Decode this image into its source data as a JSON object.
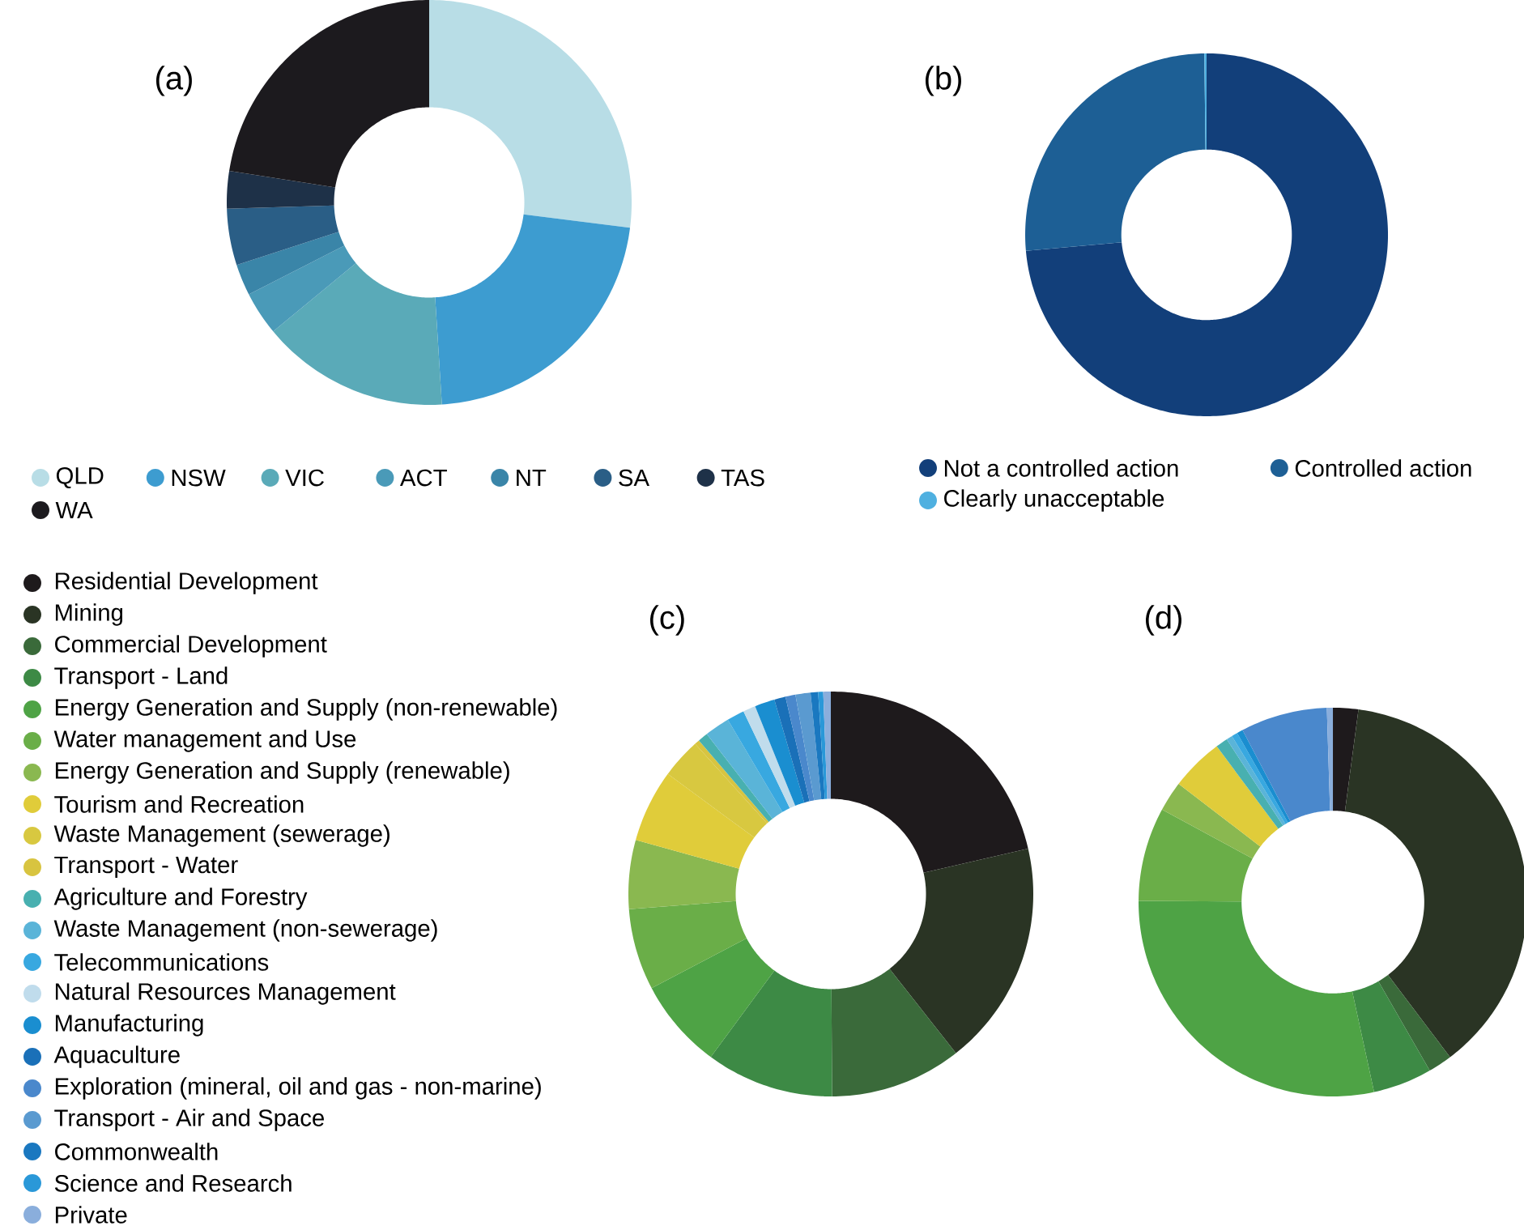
{
  "chart_data": [
    {
      "type": "donut",
      "title": "(a)",
      "categories": [
        "QLD",
        "NSW",
        "VIC",
        "ACT",
        "NT",
        "SA",
        "TAS",
        "WA"
      ],
      "values": [
        27,
        22,
        15,
        3.5,
        2.5,
        4.5,
        3,
        22.5
      ],
      "colors": [
        "#b8dde6",
        "#3d9cd0",
        "#5aaab8",
        "#4a9ab8",
        "#3a85a8",
        "#2a5e86",
        "#1e3148",
        "#1c1a1e"
      ],
      "legend": "bottom"
    },
    {
      "type": "donut",
      "title": "(b)",
      "categories": [
        "Not a controlled action",
        "Controlled action",
        "Clearly unacceptable"
      ],
      "values": [
        73.6,
        26.2,
        0.2
      ],
      "colors": [
        "#123f7a",
        "#1d5f95",
        "#4fb0e0"
      ],
      "legend": "bottom"
    },
    {
      "type": "donut",
      "title": "(c)",
      "categories": [
        "Residential Development",
        "Mining",
        "Commercial Development",
        "Transport - Land",
        "Energy Generation and Supply (non-renewable)",
        "Water management and Use",
        "Energy Generation and Supply (renewable)",
        "Tourism and Recreation",
        "Waste Management (sewerage)",
        "Transport - Water",
        "Agriculture and Forestry",
        "Waste Management (non-sewerage)",
        "Telecommunications",
        "Natural Resources Management",
        "Manufacturing",
        "Aquaculture",
        "Exploration (mineral, oil and gas - non-marine)",
        "Transport - Air and Space",
        "Commonwealth",
        "Science and Research",
        "Private"
      ],
      "values": [
        21.4,
        18,
        10.5,
        10.2,
        7.2,
        6.5,
        5.5,
        5.8,
        3.2,
        0.4,
        0.8,
        2.0,
        1.4,
        1.0,
        1.6,
        0.9,
        0.8,
        1.2,
        0.6,
        0.4,
        0.6
      ],
      "colors": [
        "#1e1a1c",
        "#2a3424",
        "#3a6a3a",
        "#3d8a45",
        "#4ea345",
        "#6aae48",
        "#8ab850",
        "#e0cc3a",
        "#d8c840",
        "#d8c440",
        "#48b0b0",
        "#5ab4d8",
        "#38a8e0",
        "#c0dcec",
        "#1a8ed0",
        "#1a70b8",
        "#4a88cc",
        "#5a9ad0",
        "#1a78c0",
        "#2a98d8",
        "#8aaedc"
      ],
      "legend": "left"
    },
    {
      "type": "donut",
      "title": "(d)",
      "categories": [
        null,
        null,
        null,
        null,
        null,
        null,
        null,
        null,
        null,
        null,
        null,
        null,
        null,
        null,
        null,
        null,
        null,
        null,
        null,
        null,
        null
      ],
      "values": [
        2.1,
        37.6,
        2,
        4.9,
        28.5,
        7.8,
        2.5,
        4.4,
        0,
        0,
        1,
        0.5,
        0.5,
        0,
        0.5,
        0,
        7.2,
        0,
        0,
        0,
        0.5
      ],
      "colors": [
        "#1e1a1c",
        "#2a3424",
        "#3a6a3a",
        "#3d8a45",
        "#4ea345",
        "#6aae48",
        "#8ab850",
        "#e0cc3a",
        "#d8c840",
        "#d8c440",
        "#48b0b0",
        "#5ab4d8",
        "#38a8e0",
        "#c0dcec",
        "#1a8ed0",
        "#1a70b8",
        "#4a88cc",
        "#5a9ad0",
        "#1a78c0",
        "#2a98d8",
        "#8aaedc"
      ]
    }
  ]
}
